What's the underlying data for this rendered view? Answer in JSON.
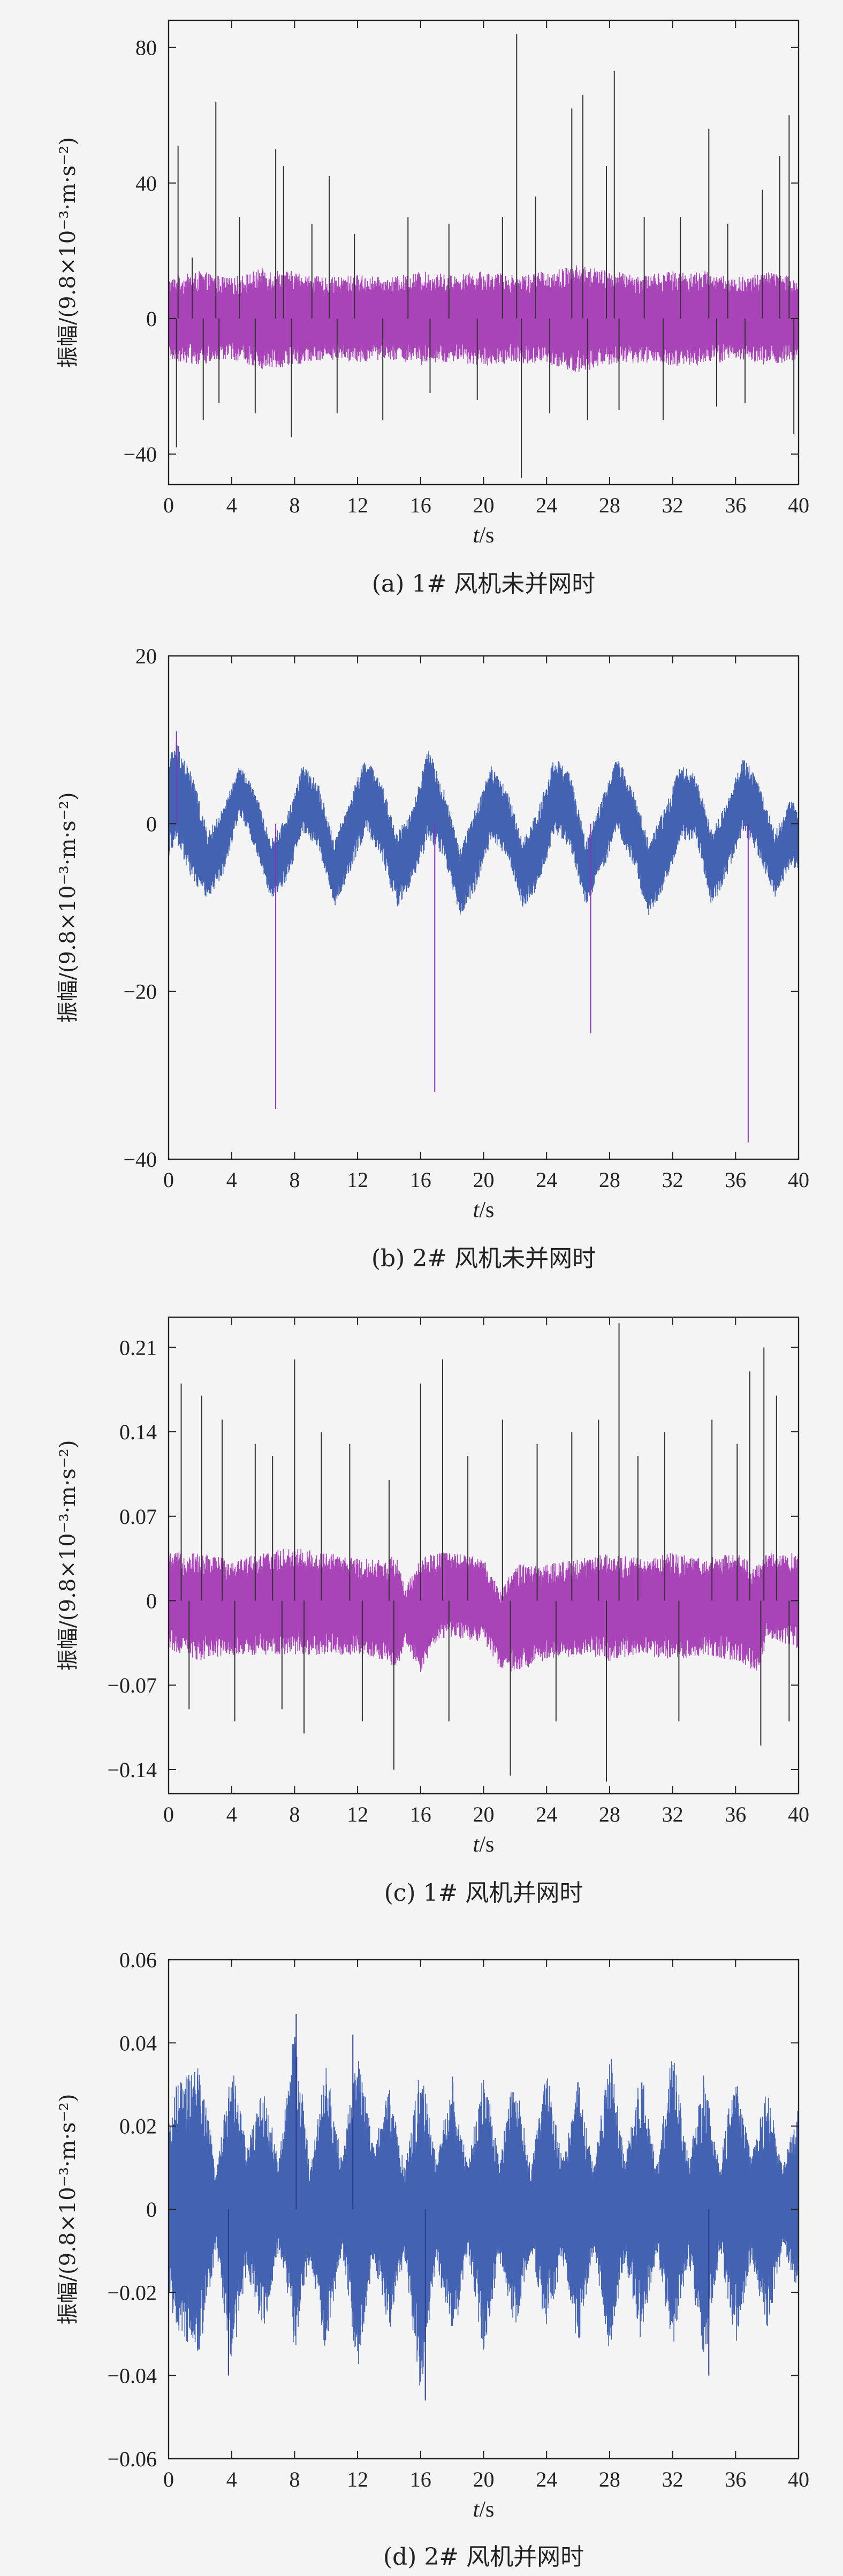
{
  "chart_data": [
    {
      "type": "line",
      "caption": "(a) 1# 风机未并网时",
      "xlabel": "t/s",
      "ylabel": "振幅/(9.8×10⁻³·m·s⁻²)",
      "xlim": [
        0,
        40
      ],
      "ylim": [
        -49,
        88
      ],
      "xticks": [
        0,
        4,
        8,
        12,
        16,
        20,
        24,
        28,
        32,
        36,
        40
      ],
      "yticks": [
        80,
        40,
        0,
        -40
      ],
      "ytick_labels": [
        "80",
        "40",
        "0",
        "−40"
      ],
      "colors": [
        "#a43ab4",
        "#333333"
      ],
      "series": [
        {
          "envelope": {
            "x": [
              0,
              2,
              4,
              6,
              8,
              10,
              12,
              14,
              16,
              18,
              20,
              22,
              24,
              26,
              28,
              30,
              32,
              34,
              36,
              38,
              40
            ],
            "upper": [
              12,
              14,
              12,
              15,
              14,
              12,
              13,
              12,
              14,
              13,
              14,
              13,
              14,
              16,
              14,
              13,
              14,
              14,
              12,
              14,
              12
            ],
            "lower": [
              -12,
              -14,
              -12,
              -15,
              -14,
              -12,
              -13,
              -12,
              -14,
              -13,
              -14,
              -13,
              -14,
              -16,
              -14,
              -13,
              -14,
              -14,
              -12,
              -14,
              -12
            ]
          },
          "spikes": [
            [
              0.6,
              51
            ],
            [
              0.5,
              -38
            ],
            [
              1.5,
              18
            ],
            [
              2.2,
              -30
            ],
            [
              3.0,
              64
            ],
            [
              3.2,
              -25
            ],
            [
              4.5,
              30
            ],
            [
              5.5,
              -28
            ],
            [
              6.8,
              50
            ],
            [
              7.3,
              45
            ],
            [
              7.8,
              -35
            ],
            [
              9.1,
              28
            ],
            [
              10.2,
              42
            ],
            [
              10.7,
              -28
            ],
            [
              11.8,
              25
            ],
            [
              13.6,
              -30
            ],
            [
              15.2,
              30
            ],
            [
              16.6,
              -22
            ],
            [
              17.8,
              28
            ],
            [
              19.6,
              -24
            ],
            [
              21.2,
              30
            ],
            [
              22.1,
              84
            ],
            [
              22.4,
              -47
            ],
            [
              23.3,
              36
            ],
            [
              24.2,
              -28
            ],
            [
              25.6,
              62
            ],
            [
              26.3,
              66
            ],
            [
              26.6,
              -30
            ],
            [
              27.8,
              45
            ],
            [
              28.3,
              73
            ],
            [
              28.6,
              -27
            ],
            [
              30.2,
              30
            ],
            [
              31.4,
              -30
            ],
            [
              32.5,
              30
            ],
            [
              34.3,
              56
            ],
            [
              34.8,
              -26
            ],
            [
              35.5,
              28
            ],
            [
              36.6,
              -25
            ],
            [
              37.7,
              38
            ],
            [
              38.8,
              48
            ],
            [
              39.4,
              60
            ],
            [
              39.7,
              -34
            ]
          ]
        }
      ]
    },
    {
      "type": "line",
      "caption": "(b) 2# 风机未并网时",
      "xlabel": "t/s",
      "ylabel": "振幅/(9.8×10⁻³·m·s⁻²)",
      "xlim": [
        0,
        40
      ],
      "ylim": [
        -40,
        20
      ],
      "xticks": [
        0,
        4,
        8,
        12,
        16,
        20,
        24,
        28,
        32,
        36,
        40
      ],
      "yticks": [
        20,
        0,
        -20,
        -40
      ],
      "ytick_labels": [
        "20",
        "0",
        "−20",
        "−40"
      ],
      "colors": [
        "#3a5aae",
        "#8a2fc0"
      ],
      "series": [
        {
          "envelope": {
            "x": [
              0,
              0.5,
              1.5,
              2.5,
              3.5,
              4.5,
              5.5,
              6.5,
              7.5,
              8.5,
              9.5,
              10.5,
              11.5,
              12.5,
              13.5,
              14.5,
              15.5,
              16.5,
              17.5,
              18.5,
              19.5,
              20.5,
              21.5,
              22.5,
              23.5,
              24.5,
              25.5,
              26.5,
              27.5,
              28.5,
              29.5,
              30.5,
              31.5,
              32.5,
              33.5,
              34.5,
              35.5,
              36.5,
              37.5,
              38.5,
              39.5,
              40
            ],
            "upper": [
              8,
              10,
              6,
              -1,
              2,
              7,
              4,
              -2,
              1,
              7,
              5,
              -2,
              3,
              8,
              5,
              -1,
              2,
              9,
              4,
              -3,
              2,
              7,
              4,
              -2,
              2,
              8,
              6,
              -2,
              3,
              8,
              4,
              -2,
              2,
              7,
              6,
              -1,
              3,
              8,
              5,
              -1,
              3,
              2
            ],
            "lower": [
              -4,
              -2,
              -7,
              -9,
              -6,
              1,
              -3,
              -9,
              -7,
              -1,
              -3,
              -10,
              -6,
              -1,
              -4,
              -10,
              -7,
              -2,
              -4,
              -11,
              -8,
              -2,
              -4,
              -10,
              -8,
              -1,
              -3,
              -10,
              -6,
              -1,
              -5,
              -11,
              -8,
              -2,
              -2,
              -10,
              -6,
              -1,
              -4,
              -9,
              -5,
              -6
            ]
          },
          "spikes": [
            [
              6.8,
              -34
            ],
            [
              16.9,
              -32
            ],
            [
              26.8,
              -25
            ],
            [
              36.8,
              -38
            ],
            [
              0.5,
              11
            ]
          ]
        }
      ]
    },
    {
      "type": "line",
      "caption": "(c) 1# 风机并网时",
      "xlabel": "t/s",
      "ylabel": "振幅/(9.8×10⁻³·m·s⁻²)",
      "xlim": [
        0,
        40
      ],
      "ylim": [
        -0.16,
        0.235
      ],
      "xticks": [
        0,
        4,
        8,
        12,
        16,
        20,
        24,
        28,
        32,
        36,
        40
      ],
      "yticks": [
        0.21,
        0.14,
        0.07,
        0,
        -0.07,
        -0.14
      ],
      "ytick_labels": [
        "0.21",
        "0.14",
        "0.07",
        "0",
        "−0.07",
        "−0.14"
      ],
      "colors": [
        "#a43ab4",
        "#333333"
      ],
      "series": [
        {
          "envelope": {
            "x": [
              0,
              2,
              4,
              6,
              8,
              10,
              12,
              14,
              14.5,
              15,
              16,
              17,
              18,
              20,
              21,
              22,
              24,
              26,
              28,
              30,
              32,
              34,
              36,
              37.5,
              38,
              40
            ],
            "upper": [
              0.04,
              0.04,
              0.035,
              0.04,
              0.045,
              0.04,
              0.035,
              0.035,
              0.04,
              0.01,
              0.035,
              0.04,
              0.04,
              0.035,
              0.01,
              0.03,
              0.03,
              0.035,
              0.04,
              0.035,
              0.04,
              0.035,
              0.04,
              0.03,
              0.04,
              0.04
            ],
            "lower": [
              -0.04,
              -0.05,
              -0.045,
              -0.045,
              -0.045,
              -0.045,
              -0.045,
              -0.05,
              -0.06,
              -0.035,
              -0.06,
              -0.035,
              -0.03,
              -0.035,
              -0.055,
              -0.06,
              -0.05,
              -0.045,
              -0.05,
              -0.045,
              -0.05,
              -0.045,
              -0.05,
              -0.06,
              -0.03,
              -0.04
            ]
          },
          "spikes": [
            [
              0.8,
              0.18
            ],
            [
              1.3,
              -0.09
            ],
            [
              2.1,
              0.17
            ],
            [
              3.4,
              0.15
            ],
            [
              4.2,
              -0.1
            ],
            [
              5.5,
              0.13
            ],
            [
              6.6,
              0.12
            ],
            [
              7.2,
              -0.09
            ],
            [
              8.0,
              0.2
            ],
            [
              8.6,
              -0.11
            ],
            [
              9.7,
              0.14
            ],
            [
              11.5,
              0.13
            ],
            [
              12.3,
              -0.1
            ],
            [
              14.0,
              0.1
            ],
            [
              14.3,
              -0.14
            ],
            [
              16.0,
              0.18
            ],
            [
              17.4,
              0.2
            ],
            [
              17.8,
              -0.1
            ],
            [
              19.0,
              0.12
            ],
            [
              21.2,
              0.15
            ],
            [
              21.7,
              -0.145
            ],
            [
              23.4,
              0.13
            ],
            [
              24.6,
              -0.1
            ],
            [
              25.6,
              0.14
            ],
            [
              27.3,
              0.15
            ],
            [
              27.8,
              -0.15
            ],
            [
              28.6,
              0.23
            ],
            [
              29.8,
              0.12
            ],
            [
              31.5,
              0.14
            ],
            [
              32.4,
              -0.1
            ],
            [
              34.5,
              0.15
            ],
            [
              36.1,
              0.13
            ],
            [
              36.9,
              0.19
            ],
            [
              37.6,
              -0.12
            ],
            [
              37.8,
              0.21
            ],
            [
              38.6,
              0.17
            ],
            [
              39.4,
              -0.1
            ]
          ]
        }
      ]
    },
    {
      "type": "line",
      "caption": "(d) 2# 风机并网时",
      "xlabel": "t/s",
      "ylabel": "振幅/(9.8×10⁻³·m·s⁻²)",
      "xlim": [
        0,
        40
      ],
      "ylim": [
        -0.06,
        0.06
      ],
      "xticks": [
        0,
        4,
        8,
        12,
        16,
        20,
        24,
        28,
        32,
        36,
        40
      ],
      "yticks": [
        0.06,
        0.04,
        0.02,
        0,
        -0.02,
        -0.04,
        -0.06
      ],
      "ytick_labels": [
        "0.06",
        "0.04",
        "0.02",
        "0",
        "−0.02",
        "−0.04",
        "−0.06"
      ],
      "colors": [
        "#3a5aae",
        "#2a3a8a"
      ],
      "series": [
        {
          "envelope": {
            "x": [
              0,
              0.5,
              2,
              3,
              4,
              5,
              6,
              7,
              8,
              9,
              10,
              11,
              12,
              13,
              14,
              15,
              16,
              17,
              18,
              19,
              20,
              21,
              22,
              23,
              24,
              25,
              26,
              27,
              28,
              29,
              30,
              31,
              32,
              33,
              34,
              35,
              36,
              37,
              38,
              39,
              40
            ],
            "upper": [
              0.02,
              0.03,
              0.035,
              0.01,
              0.035,
              0.015,
              0.03,
              0.012,
              0.045,
              0.01,
              0.035,
              0.012,
              0.04,
              0.015,
              0.03,
              0.01,
              0.035,
              0.012,
              0.033,
              0.01,
              0.035,
              0.012,
              0.034,
              0.01,
              0.034,
              0.012,
              0.032,
              0.01,
              0.04,
              0.012,
              0.034,
              0.01,
              0.04,
              0.012,
              0.033,
              0.01,
              0.035,
              0.012,
              0.03,
              0.01,
              0.025
            ],
            "lower": [
              -0.02,
              -0.03,
              -0.035,
              -0.01,
              -0.038,
              -0.015,
              -0.03,
              -0.01,
              -0.035,
              -0.012,
              -0.035,
              -0.01,
              -0.04,
              -0.012,
              -0.03,
              -0.012,
              -0.045,
              -0.012,
              -0.035,
              -0.01,
              -0.035,
              -0.012,
              -0.03,
              -0.01,
              -0.03,
              -0.012,
              -0.034,
              -0.01,
              -0.035,
              -0.012,
              -0.033,
              -0.01,
              -0.035,
              -0.012,
              -0.038,
              -0.01,
              -0.033,
              -0.012,
              -0.03,
              -0.01,
              -0.02
            ]
          },
          "spikes": [
            [
              8.1,
              0.047
            ],
            [
              16.3,
              -0.046
            ],
            [
              11.7,
              0.042
            ],
            [
              3.8,
              -0.04
            ],
            [
              34.3,
              -0.04
            ]
          ]
        }
      ]
    }
  ]
}
